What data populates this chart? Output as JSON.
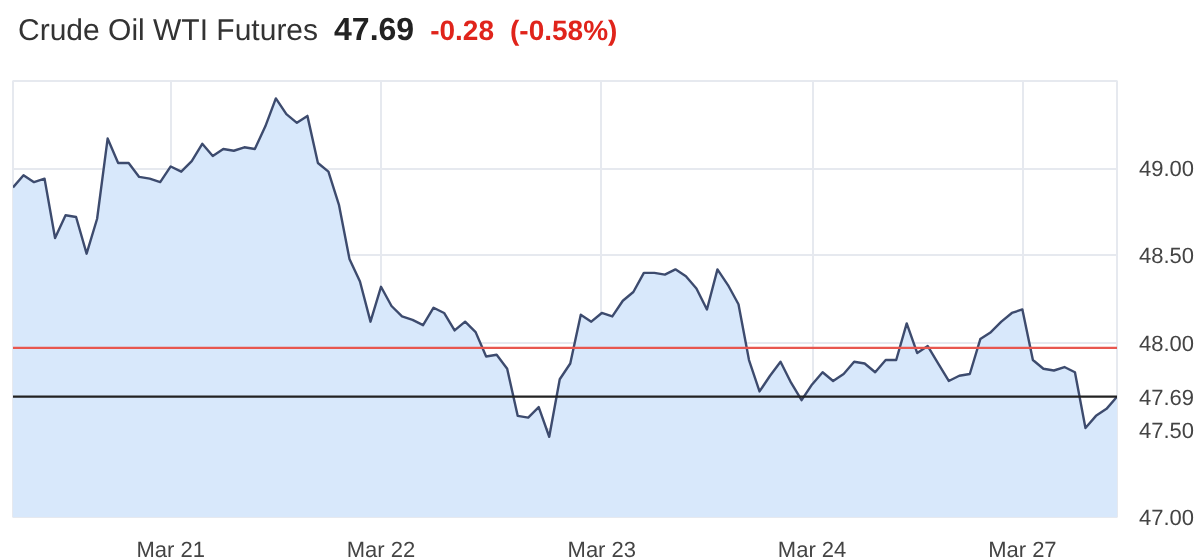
{
  "chart_data": {
    "type": "area",
    "title": "Crude Oil WTI Futures",
    "annotations": [
      "47.69",
      "-0.28",
      "(-0.58%)"
    ],
    "categories": [
      null,
      null,
      null,
      null,
      null,
      null,
      null,
      null,
      null,
      null,
      null,
      null,
      null,
      null,
      null,
      "Mar 21",
      null,
      null,
      null,
      null,
      null,
      null,
      null,
      null,
      null,
      null,
      null,
      null,
      null,
      null,
      null,
      null,
      null,
      null,
      null,
      "Mar 22",
      null,
      null,
      null,
      null,
      null,
      null,
      null,
      null,
      null,
      null,
      null,
      null,
      null,
      null,
      null,
      null,
      null,
      null,
      null,
      null,
      "Mar 23",
      null,
      null,
      null,
      null,
      null,
      null,
      null,
      null,
      null,
      null,
      null,
      null,
      null,
      null,
      null,
      null,
      null,
      null,
      null,
      "Mar 24",
      null,
      null,
      null,
      null,
      null,
      null,
      null,
      null,
      null,
      null,
      null,
      null,
      null,
      null,
      null,
      null,
      null,
      null,
      null,
      "Mar 27",
      null,
      null,
      null,
      null,
      null,
      null,
      null,
      null,
      null
    ],
    "series": [
      {
        "color": "#3d4b6e",
        "values": [
          48.89,
          48.96,
          48.92,
          48.94,
          48.6,
          48.73,
          48.72,
          48.51,
          48.71,
          49.17,
          49.03,
          49.03,
          48.95,
          48.94,
          48.92,
          49.01,
          48.98,
          49.04,
          49.14,
          49.07,
          49.11,
          49.1,
          49.12,
          49.11,
          49.24,
          49.4,
          49.31,
          49.26,
          49.3,
          49.03,
          48.98,
          48.79,
          48.48,
          48.35,
          48.12,
          48.32,
          48.21,
          48.15,
          48.13,
          48.1,
          48.2,
          48.17,
          48.07,
          48.12,
          48.06,
          47.92,
          47.93,
          47.85,
          47.58,
          47.57,
          47.63,
          47.46,
          47.79,
          47.88,
          48.16,
          48.12,
          48.17,
          48.15,
          48.24,
          48.29,
          48.4,
          48.4,
          48.39,
          48.42,
          48.38,
          48.31,
          48.19,
          48.42,
          48.33,
          48.22,
          47.9,
          47.72,
          47.81,
          47.89,
          47.77,
          47.67,
          47.76,
          47.83,
          47.78,
          47.82,
          47.89,
          47.88,
          47.83,
          47.9,
          47.9,
          48.11,
          47.94,
          47.98,
          47.88,
          47.78,
          47.81,
          47.82,
          48.02,
          48.06,
          48.12,
          48.17,
          48.19,
          47.9,
          47.85,
          47.84,
          47.86,
          47.83,
          47.51,
          47.58,
          47.62,
          47.69
        ]
      }
    ],
    "ylim": [
      47.0,
      49.5
    ],
    "yticks": [
      {
        "value": 47.0,
        "label": "47.00"
      },
      {
        "value": 47.5,
        "label": "47.50"
      },
      {
        "value": 48.0,
        "label": "48.00"
      },
      {
        "value": 48.5,
        "label": "48.50"
      },
      {
        "value": 49.0,
        "label": "49.00"
      }
    ],
    "ref_lines": [
      {
        "axis": "y",
        "value": 47.97,
        "color": "#e8574f"
      },
      {
        "axis": "y",
        "value": 47.69,
        "label": "47.69",
        "color": "#222222"
      }
    ],
    "grid": true
  }
}
